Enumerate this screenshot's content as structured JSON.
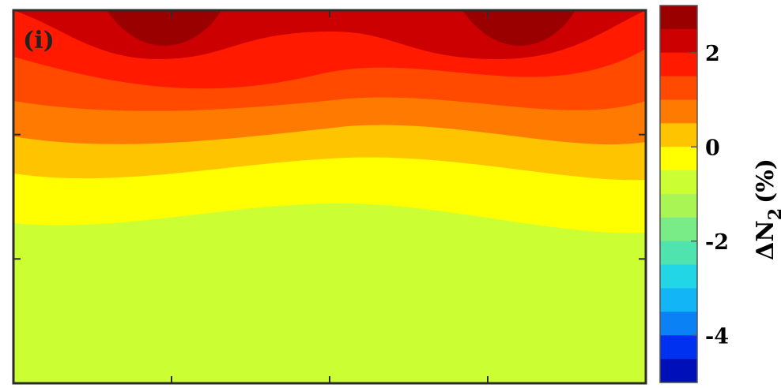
{
  "chart_data": {
    "type": "heatmap",
    "subtype": "filled-contour",
    "panel_label": "(i)",
    "colorbar": {
      "label_main": "ΔN",
      "label_subscript": "2",
      "label_unit": "(%)",
      "range": [
        -5,
        3
      ],
      "level_step": 0.5,
      "ticks": [
        2,
        0,
        -2,
        -4
      ],
      "tick_labels": [
        "2",
        "0",
        "-2",
        "-4"
      ],
      "levels": [
        {
          "from": 2.5,
          "to": 3.0,
          "color": "#9b0000"
        },
        {
          "from": 2.0,
          "to": 2.5,
          "color": "#cc0000"
        },
        {
          "from": 1.5,
          "to": 2.0,
          "color": "#ff1a00"
        },
        {
          "from": 1.0,
          "to": 1.5,
          "color": "#ff4a00"
        },
        {
          "from": 0.5,
          "to": 1.0,
          "color": "#ff7a00"
        },
        {
          "from": 0.0,
          "to": 0.5,
          "color": "#ffc400"
        },
        {
          "from": -0.5,
          "to": 0.0,
          "color": "#ffff00"
        },
        {
          "from": -1.0,
          "to": -0.5,
          "color": "#ccff33"
        },
        {
          "from": -1.5,
          "to": -1.0,
          "color": "#a9f553"
        },
        {
          "from": -2.0,
          "to": -1.5,
          "color": "#79eb87"
        },
        {
          "from": -2.5,
          "to": -2.0,
          "color": "#4fe3b0"
        },
        {
          "from": -3.0,
          "to": -2.5,
          "color": "#22d6e6"
        },
        {
          "from": -3.5,
          "to": -3.0,
          "color": "#12b5f5"
        },
        {
          "from": -4.0,
          "to": -3.5,
          "color": "#0a82f5"
        },
        {
          "from": -4.5,
          "to": -4.0,
          "color": "#0030f0"
        },
        {
          "from": -5.0,
          "to": -4.5,
          "color": "#0010b8"
        }
      ]
    },
    "field_bands": [
      {
        "level": "-1.0 to -0.5",
        "color": "#ccff33"
      },
      {
        "level": "-0.5 to 0.0",
        "color": "#ffff00"
      },
      {
        "level": "0.0 to 0.5",
        "color": "#ffc400"
      },
      {
        "level": "0.5 to 1.0",
        "color": "#ff7a00"
      },
      {
        "level": "1.0 to 1.5",
        "color": "#ff4a00"
      },
      {
        "level": "1.5 to 2.0",
        "color": "#ff1a00"
      },
      {
        "level": "2.0 to 2.5",
        "color": "#cc0000"
      },
      {
        "level": "2.5 to 3.0",
        "color": "#9b0000"
      }
    ],
    "x_ticks_shown": 3,
    "y_ticks_shown": 2,
    "tick_labels_on_axes": false,
    "grid": false
  }
}
